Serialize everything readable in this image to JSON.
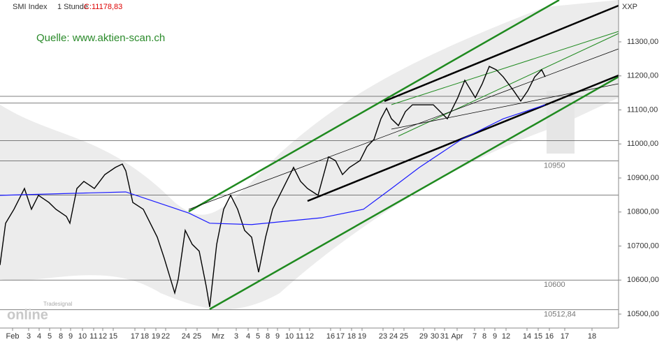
{
  "chart_data": {
    "type": "line",
    "header": {
      "symbol": "SMI Index",
      "interval": "1 Stunde",
      "close": "C:11178,83",
      "axis_code": "XXP"
    },
    "source": "Quelle: www.aktien-scan.ch",
    "logo": {
      "brand": "Tradesignal",
      "word": "online"
    },
    "xlim": [
      0,
      177
    ],
    "ylim": [
      10459,
      11423
    ],
    "yticks": [
      {
        "value": 10500,
        "label": "10500,00"
      },
      {
        "value": 10600,
        "label": "10600,00"
      },
      {
        "value": 10700,
        "label": "10700,00"
      },
      {
        "value": 10800,
        "label": "10800,00"
      },
      {
        "value": 10900,
        "label": "10900,00"
      },
      {
        "value": 11000,
        "label": "11000,00"
      },
      {
        "value": 11100,
        "label": "11100,00"
      },
      {
        "value": 11200,
        "label": "11200,00"
      },
      {
        "value": 11300,
        "label": "11300,00"
      }
    ],
    "xticks": [
      {
        "value": 3.6,
        "label": "Feb"
      },
      {
        "value": 8.2,
        "label": "3"
      },
      {
        "value": 11.2,
        "label": "4"
      },
      {
        "value": 14.2,
        "label": "5"
      },
      {
        "value": 17.4,
        "label": "8"
      },
      {
        "value": 20.2,
        "label": "9"
      },
      {
        "value": 23.6,
        "label": "10"
      },
      {
        "value": 26.8,
        "label": "11"
      },
      {
        "value": 29.4,
        "label": "12"
      },
      {
        "value": 32.4,
        "label": "15"
      },
      {
        "value": 38.6,
        "label": "17"
      },
      {
        "value": 41.4,
        "label": "18"
      },
      {
        "value": 44.6,
        "label": "19"
      },
      {
        "value": 47.4,
        "label": "22"
      },
      {
        "value": 53.2,
        "label": "24"
      },
      {
        "value": 56.4,
        "label": "25"
      },
      {
        "value": 62.4,
        "label": "Mrz"
      },
      {
        "value": 67.6,
        "label": "3"
      },
      {
        "value": 71,
        "label": "4"
      },
      {
        "value": 73.8,
        "label": "5"
      },
      {
        "value": 76.6,
        "label": "8"
      },
      {
        "value": 79.4,
        "label": "9"
      },
      {
        "value": 82.8,
        "label": "10"
      },
      {
        "value": 85.8,
        "label": "11"
      },
      {
        "value": 88.6,
        "label": "12"
      },
      {
        "value": 94.6,
        "label": "16"
      },
      {
        "value": 97.4,
        "label": "17"
      },
      {
        "value": 100.6,
        "label": "18"
      },
      {
        "value": 103.6,
        "label": "19"
      },
      {
        "value": 109.6,
        "label": "23"
      },
      {
        "value": 112.6,
        "label": "24"
      },
      {
        "value": 115.6,
        "label": "25"
      },
      {
        "value": 121.2,
        "label": "29"
      },
      {
        "value": 124.4,
        "label": "30"
      },
      {
        "value": 127.2,
        "label": "31"
      },
      {
        "value": 130.8,
        "label": "Apr"
      },
      {
        "value": 135.8,
        "label": "7"
      },
      {
        "value": 138.6,
        "label": "8"
      },
      {
        "value": 141.6,
        "label": "9"
      },
      {
        "value": 144.8,
        "label": "12"
      },
      {
        "value": 150.8,
        "label": "14"
      },
      {
        "value": 154,
        "label": "15"
      },
      {
        "value": 157.2,
        "label": "16"
      },
      {
        "value": 161.6,
        "label": "17"
      },
      {
        "value": 169.4,
        "label": "18"
      }
    ],
    "levels": [
      10950,
      10600,
      {
        "value": 10512.84,
        "label": "10512,84"
      }
    ],
    "level_lines": [
      11140,
      11120,
      11010,
      10850
    ],
    "series": [
      {
        "color": "#000000",
        "x": [
          0,
          1.6,
          4,
          7,
          9,
          11,
          14,
          16,
          19,
          20,
          22,
          24,
          27,
          30,
          33,
          35,
          36,
          38,
          41,
          43,
          45,
          47,
          50,
          51,
          53,
          55,
          57,
          59,
          60,
          62,
          64,
          66,
          68,
          70,
          72,
          74,
          76,
          78,
          80,
          82,
          84,
          86,
          88,
          91,
          94,
          96,
          98,
          100,
          103,
          105,
          107,
          109,
          110.6,
          112,
          114,
          116,
          118,
          120,
          124,
          128,
          131,
          133,
          136,
          138,
          140,
          142,
          144,
          147,
          149,
          151,
          153,
          155,
          156
        ],
        "values": [
          10644,
          10767,
          10808,
          10869,
          10808,
          10849,
          10828,
          10808,
          10787,
          10767,
          10869,
          10890,
          10869,
          10910,
          10931,
          10941,
          10921,
          10828,
          10808,
          10767,
          10726,
          10664,
          10562,
          10603,
          10746,
          10705,
          10685,
          10582,
          10521,
          10705,
          10808,
          10849,
          10808,
          10746,
          10726,
          10623,
          10726,
          10808,
          10849,
          10890,
          10931,
          10890,
          10869,
          10849,
          10962,
          10951,
          10910,
          10931,
          10951,
          10992,
          11013,
          11074,
          11105,
          11074,
          11054,
          11095,
          11115,
          11115,
          11115,
          11074,
          11136,
          11187,
          11136,
          11177,
          11228,
          11218,
          11197,
          11156,
          11126,
          11156,
          11197,
          11218,
          11197
        ]
      },
      {
        "color": "#1a1aff",
        "x": [
          0,
          36,
          54,
          60,
          72,
          80,
          92,
          104,
          112,
          120,
          132,
          144,
          156
        ],
        "values": [
          10849,
          10859,
          10797,
          10767,
          10763,
          10771,
          10783,
          10808,
          10869,
          10931,
          11013,
          11074,
          11115
        ]
      }
    ]
  }
}
